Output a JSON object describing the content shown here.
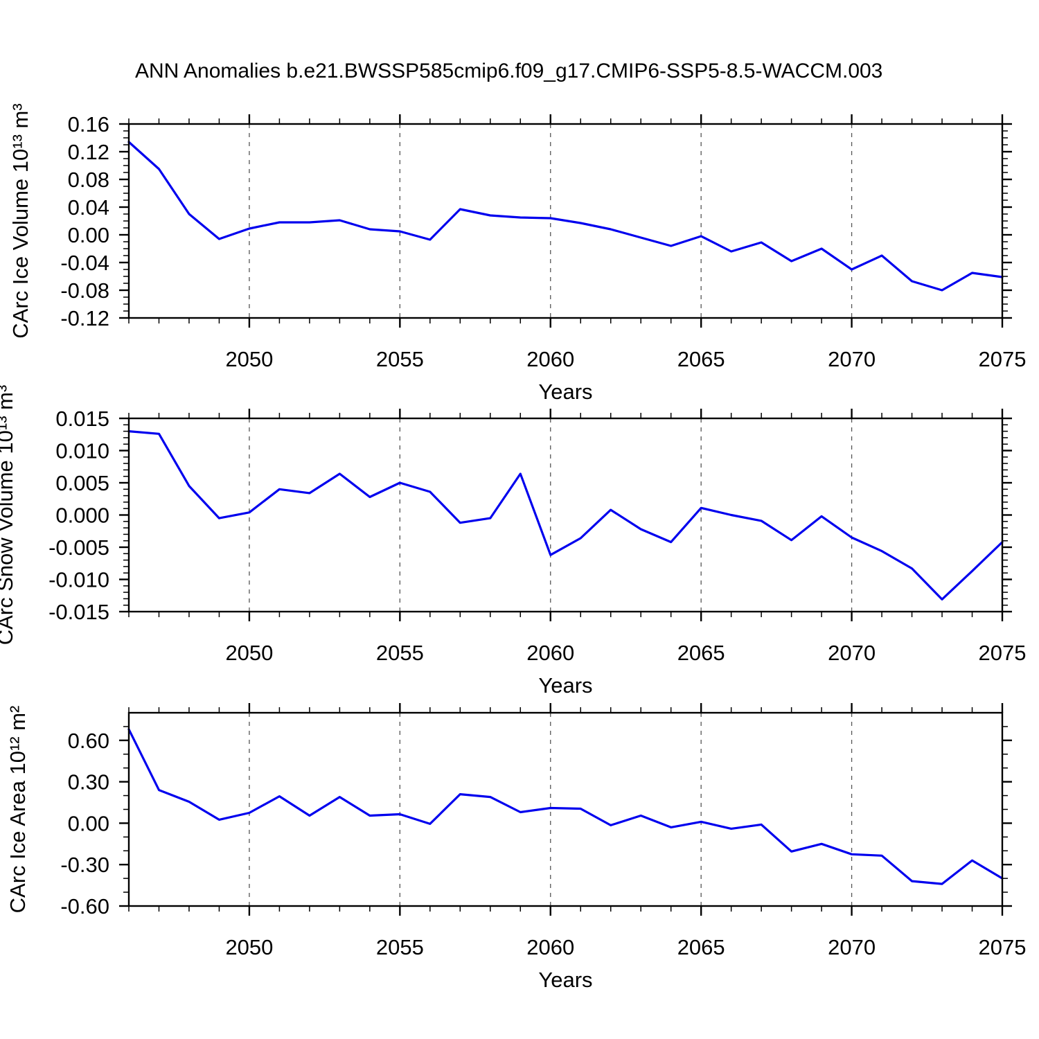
{
  "title": "ANN Anomalies b.e21.BWSSP585cmip6.f09_g17.CMIP6-SSP5-8.5-WACCM.003",
  "line_color": "#0000EE",
  "grid_color": "#555555",
  "axis_color": "#000000",
  "chart_data": [
    {
      "type": "line",
      "name": "ice-volume",
      "ylabel": "CArc Ice Volume 10¹³ m³",
      "xlabel": "Years",
      "xlim": [
        2046,
        2075
      ],
      "ylim": [
        -0.12,
        0.16
      ],
      "xticks": [
        2050,
        2055,
        2060,
        2065,
        2070,
        2075
      ],
      "xtick_labels": [
        "2050",
        "2055",
        "2060",
        "2065",
        "2070",
        "2075"
      ],
      "grid_x": [
        2050,
        2055,
        2060,
        2065,
        2070
      ],
      "x_minor_step": 1,
      "yticks": [
        0.16,
        0.12,
        0.08,
        0.04,
        0.0,
        -0.04,
        -0.08,
        -0.12
      ],
      "ytick_labels": [
        "0.16",
        "0.12",
        "0.08",
        "0.04",
        "0.00",
        "-0.04",
        "-0.08",
        "-0.12"
      ],
      "y_minor_step": 0.01,
      "x": [
        2046,
        2047,
        2048,
        2049,
        2050,
        2051,
        2052,
        2053,
        2054,
        2055,
        2056,
        2057,
        2058,
        2059,
        2060,
        2061,
        2062,
        2063,
        2064,
        2065,
        2066,
        2067,
        2068,
        2069,
        2070,
        2071,
        2072,
        2073,
        2074,
        2075
      ],
      "values": [
        0.134,
        0.095,
        0.03,
        -0.006,
        0.009,
        0.018,
        0.018,
        0.021,
        0.008,
        0.005,
        -0.007,
        0.037,
        0.028,
        0.025,
        0.024,
        0.017,
        0.008,
        -0.004,
        -0.016,
        -0.002,
        -0.024,
        -0.011,
        -0.038,
        -0.02,
        -0.05,
        -0.03,
        -0.067,
        -0.08,
        -0.055,
        -0.061
      ]
    },
    {
      "type": "line",
      "name": "snow-volume",
      "ylabel": "CArc Snow Volume 10¹³ m³",
      "xlabel": "Years",
      "xlim": [
        2046,
        2075
      ],
      "ylim": [
        -0.015,
        0.015
      ],
      "xticks": [
        2050,
        2055,
        2060,
        2065,
        2070,
        2075
      ],
      "xtick_labels": [
        "2050",
        "2055",
        "2060",
        "2065",
        "2070",
        "2075"
      ],
      "grid_x": [
        2050,
        2055,
        2060,
        2065,
        2070
      ],
      "x_minor_step": 1,
      "yticks": [
        0.015,
        0.01,
        0.005,
        0.0,
        -0.005,
        -0.01,
        -0.015
      ],
      "ytick_labels": [
        "0.015",
        "0.010",
        "0.005",
        "0.000",
        "-0.005",
        "-0.010",
        "-0.015"
      ],
      "y_minor_step": 0.001,
      "x": [
        2046,
        2047,
        2048,
        2049,
        2050,
        2051,
        2052,
        2053,
        2054,
        2055,
        2056,
        2057,
        2058,
        2059,
        2060,
        2061,
        2062,
        2063,
        2064,
        2065,
        2066,
        2067,
        2068,
        2069,
        2070,
        2071,
        2072,
        2073,
        2074,
        2075
      ],
      "values": [
        0.013,
        0.0126,
        0.0045,
        -0.0005,
        0.0004,
        0.004,
        0.0034,
        0.0064,
        0.0028,
        0.005,
        0.0036,
        -0.0012,
        -0.0005,
        0.0064,
        -0.0062,
        -0.0036,
        0.0008,
        -0.0022,
        -0.0042,
        0.0011,
        0.0,
        -0.0009,
        -0.0039,
        -0.0002,
        -0.0035,
        -0.0056,
        -0.0083,
        -0.0131,
        -0.0087,
        -0.0042
      ]
    },
    {
      "type": "line",
      "name": "ice-area",
      "ylabel": "CArc Ice Area 10¹² m²",
      "xlabel": "Years",
      "xlim": [
        2046,
        2075
      ],
      "ylim": [
        -0.6,
        0.8
      ],
      "xticks": [
        2050,
        2055,
        2060,
        2065,
        2070,
        2075
      ],
      "xtick_labels": [
        "2050",
        "2055",
        "2060",
        "2065",
        "2070",
        "2075"
      ],
      "grid_x": [
        2050,
        2055,
        2060,
        2065,
        2070
      ],
      "x_minor_step": 1,
      "yticks": [
        0.6,
        0.3,
        0.0,
        -0.3,
        -0.6
      ],
      "ytick_labels": [
        "0.60",
        "0.30",
        "0.00",
        "-0.30",
        "-0.60"
      ],
      "y_minor_step": 0.1,
      "x": [
        2046,
        2047,
        2048,
        2049,
        2050,
        2051,
        2052,
        2053,
        2054,
        2055,
        2056,
        2057,
        2058,
        2059,
        2060,
        2061,
        2062,
        2063,
        2064,
        2065,
        2066,
        2067,
        2068,
        2069,
        2070,
        2071,
        2072,
        2073,
        2074,
        2075
      ],
      "values": [
        0.68,
        0.24,
        0.155,
        0.025,
        0.075,
        0.195,
        0.055,
        0.19,
        0.055,
        0.065,
        -0.005,
        0.21,
        0.19,
        0.08,
        0.11,
        0.105,
        -0.015,
        0.055,
        -0.03,
        0.01,
        -0.04,
        -0.01,
        -0.205,
        -0.15,
        -0.225,
        -0.235,
        -0.42,
        -0.44,
        -0.27,
        -0.4
      ]
    }
  ]
}
